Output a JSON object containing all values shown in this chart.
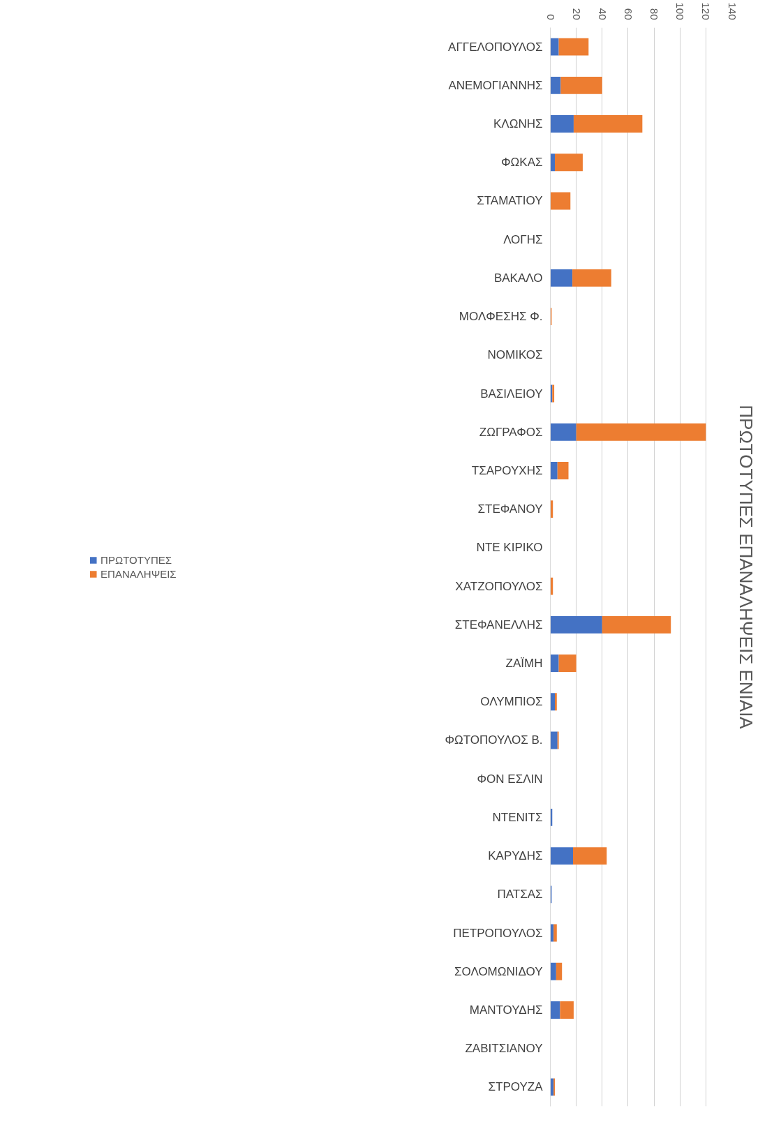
{
  "chart_data": {
    "type": "bar",
    "orientation": "horizontal",
    "stacked": true,
    "title": "ΠΡΩΤΟΤΥΠΕΣ ΕΠΑΝΑΛΗΨΕΙΣ ΕΝΙΑΙΑ",
    "categories": [
      "ΑΓΓΕΛΟΠΟΥΛΟΣ",
      "ΑΝΕΜΟΓΙΑΝΝΗΣ",
      "ΚΛΩΝΗΣ",
      "ΦΩΚΑΣ",
      "ΣΤΑΜΑΤΙΟΥ",
      "ΛΟΓΗΣ",
      "ΒΑΚΑΛΟ",
      "ΜΟΛΦΕΣΗΣ Φ.",
      "ΝΟΜΙΚΟΣ",
      "ΒΑΣΙΛΕΙΟΥ",
      "ΖΩΓΡΑΦΟΣ",
      "ΤΣΑΡΟΥΧΗΣ",
      "ΣΤΕΦΑΝΟΥ",
      "ΝΤΕ ΚΙΡΙΚΟ",
      "ΧΑΤΖΟΠΟΥΛΟΣ",
      "ΣΤΕΦΑΝΕΛΛΗΣ",
      "ΖΑΪΜΗ",
      "ΟΛΥΜΠΙΟΣ",
      "ΦΩΤΟΠΟΥΛΟΣ Β.",
      "ΦΟΝ ΕΣΛΙΝ",
      "ΝΤΕΝΙΤΣ",
      "ΚΑΡΥΔΗΣ",
      "ΠΑΤΣΑΣ",
      "ΠΕΤΡΟΠΟΥΛΟΣ",
      "ΣΟΛΟΜΩΝΙΔΟΥ",
      "ΜΑΝΤΟΥΔΗΣ",
      "ΖΑΒΙΤΣΙΑΝΟΥ",
      "ΣΤΡΟΥΖΑ"
    ],
    "series": [
      {
        "name": "ΠΡΩΤΟΤΥΠΕΣ",
        "color": "#4472c4",
        "values": [
          6.5,
          8,
          18,
          3.5,
          0,
          0,
          17,
          0,
          0,
          1.5,
          20,
          5.5,
          0,
          0,
          0,
          40,
          6.5,
          3.5,
          5.5,
          0,
          1.5,
          17.5,
          1,
          2.5,
          4.5,
          7.5,
          0,
          2.5
        ]
      },
      {
        "name": "ΕΠΑΝΑΛΗΨΕΙΣ",
        "color": "#ed7d31",
        "values": [
          23,
          32,
          53,
          21.5,
          15.5,
          null,
          30,
          1,
          null,
          1.5,
          100,
          8.5,
          2,
          null,
          2,
          53,
          13.5,
          1.5,
          1,
          null,
          0,
          26,
          0,
          2.5,
          4.5,
          10.5,
          null,
          1
        ]
      }
    ],
    "xlim": [
      0,
      140
    ],
    "xticks": [
      0,
      20,
      40,
      60,
      80,
      100,
      120,
      140
    ],
    "grid": "x",
    "legend": "left"
  }
}
